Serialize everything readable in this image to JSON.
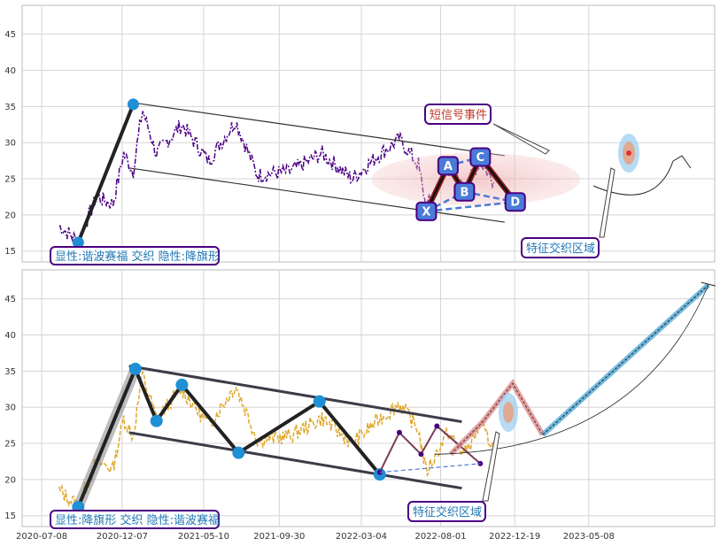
{
  "chart_data": [
    {
      "type": "line",
      "panel": "top",
      "ylim": [
        13.5,
        49
      ],
      "yticks": [
        15,
        20,
        25,
        30,
        35,
        40,
        45
      ],
      "xlim": [
        "2020-06-01",
        "2024-01-01"
      ],
      "grid": true,
      "price_color": "#4b0082",
      "channel_upper": [
        [
          "2020-12-20",
          35.6
        ],
        [
          "2022-11-30",
          28.2
        ]
      ],
      "channel_lower": [
        [
          "2020-12-20",
          26.5
        ],
        [
          "2022-11-30",
          19.0
        ]
      ],
      "impulse": [
        [
          "2020-09-15",
          16.2
        ],
        [
          "2020-12-28",
          35.3
        ]
      ],
      "pattern_points": [
        {
          "label": "X",
          "date": "2022-07-05",
          "value": 20.5
        },
        {
          "label": "A",
          "date": "2022-08-15",
          "value": 26.8
        },
        {
          "label": "B",
          "date": "2022-09-15",
          "value": 23.2
        },
        {
          "label": "C",
          "date": "2022-10-15",
          "value": 28.0
        },
        {
          "label": "D",
          "date": "2022-12-20",
          "value": 21.8
        }
      ],
      "annotations": {
        "left_box": "显性:谐波赛福 交织 隐性:降旗形",
        "signal_box": "短信号事件",
        "zone_box": "特征交织区域"
      },
      "label_colors": {
        "signal": "#c0392b",
        "zone": "#1f77b4",
        "box_border": "#4b0082"
      }
    },
    {
      "type": "line",
      "panel": "bottom",
      "ylim": [
        13.5,
        49
      ],
      "yticks": [
        15,
        20,
        25,
        30,
        35,
        40,
        45
      ],
      "xlim": [
        "2020-06-01",
        "2024-01-01"
      ],
      "x_tick_labels": [
        "2020-07-08",
        "2020-12-07",
        "2021-05-10",
        "2021-09-30",
        "2022-03-04",
        "2022-08-01",
        "2022-12-19",
        "2023-05-08"
      ],
      "grid": true,
      "price_color": "#e0a82e",
      "zigzag_points": [
        {
          "date": "2020-09-15",
          "value": 16.2
        },
        {
          "date": "2021-01-01",
          "value": 35.3
        },
        {
          "date": "2021-02-10",
          "value": 28.1
        },
        {
          "date": "2021-03-30",
          "value": 33.1
        },
        {
          "date": "2021-07-15",
          "value": 23.7
        },
        {
          "date": "2021-12-15",
          "value": 30.8
        },
        {
          "date": "2022-04-08",
          "value": 20.7
        }
      ],
      "channel_upper": [
        [
          "2020-12-20",
          35.7
        ],
        [
          "2022-09-10",
          28.0
        ]
      ],
      "channel_lower": [
        [
          "2020-12-20",
          26.5
        ],
        [
          "2022-09-10",
          18.8
        ]
      ],
      "pattern_points": [
        {
          "date": "2022-04-08",
          "value": 21.0
        },
        {
          "date": "2022-05-15",
          "value": 26.5
        },
        {
          "date": "2022-06-25",
          "value": 23.5
        },
        {
          "date": "2022-07-25",
          "value": 27.4
        },
        {
          "date": "2022-10-15",
          "value": 22.2
        }
      ],
      "projection_points": [
        {
          "date": "2022-08-20",
          "value": 23.5
        },
        {
          "date": "2022-10-20",
          "value": 28.0
        },
        {
          "date": "2022-12-15",
          "value": 33.3
        },
        {
          "date": "2023-02-10",
          "value": 26.2
        },
        {
          "date": "2023-12-20",
          "value": 46.9
        }
      ],
      "annotations": {
        "left_box": "显性:降旗形 交织 隐性:谐波赛福",
        "zone_box": "特征交织区域"
      }
    }
  ]
}
